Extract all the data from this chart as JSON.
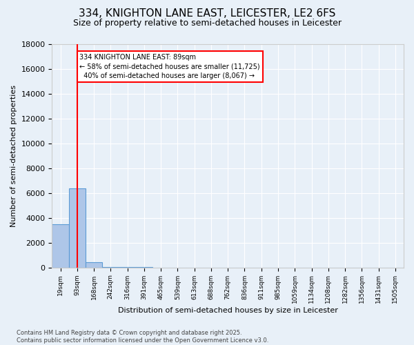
{
  "title": "334, KNIGHTON LANE EAST, LEICESTER, LE2 6FS",
  "subtitle": "Size of property relative to semi-detached houses in Leicester",
  "xlabel": "Distribution of semi-detached houses by size in Leicester",
  "ylabel": "Number of semi-detached properties",
  "bar_values": [
    3500,
    6400,
    400,
    50,
    15,
    8,
    4,
    2,
    1,
    1,
    1,
    0,
    0,
    0,
    0,
    0,
    0,
    0,
    0,
    0,
    0
  ],
  "bin_labels": [
    "19sqm",
    "93sqm",
    "168sqm",
    "242sqm",
    "316sqm",
    "391sqm",
    "465sqm",
    "539sqm",
    "613sqm",
    "688sqm",
    "762sqm",
    "836sqm",
    "911sqm",
    "985sqm",
    "1059sqm",
    "1134sqm",
    "1208sqm",
    "1282sqm",
    "1356sqm",
    "1431sqm",
    "1505sqm"
  ],
  "ylim": [
    0,
    18000
  ],
  "bar_color": "#aec6e8",
  "bar_edge_color": "#5b9bd5",
  "bg_color": "#e8f0f8",
  "grid_color": "#ffffff",
  "red_line_x": 1,
  "annotation_text": "334 KNIGHTON LANE EAST: 89sqm\n← 58% of semi-detached houses are smaller (11,725)\n  40% of semi-detached houses are larger (8,067) →",
  "footer_line1": "Contains HM Land Registry data © Crown copyright and database right 2025.",
  "footer_line2": "Contains public sector information licensed under the Open Government Licence v3.0.",
  "title_fontsize": 11,
  "subtitle_fontsize": 9,
  "ytick_values": [
    0,
    2000,
    4000,
    6000,
    8000,
    10000,
    12000,
    14000,
    16000,
    18000
  ]
}
